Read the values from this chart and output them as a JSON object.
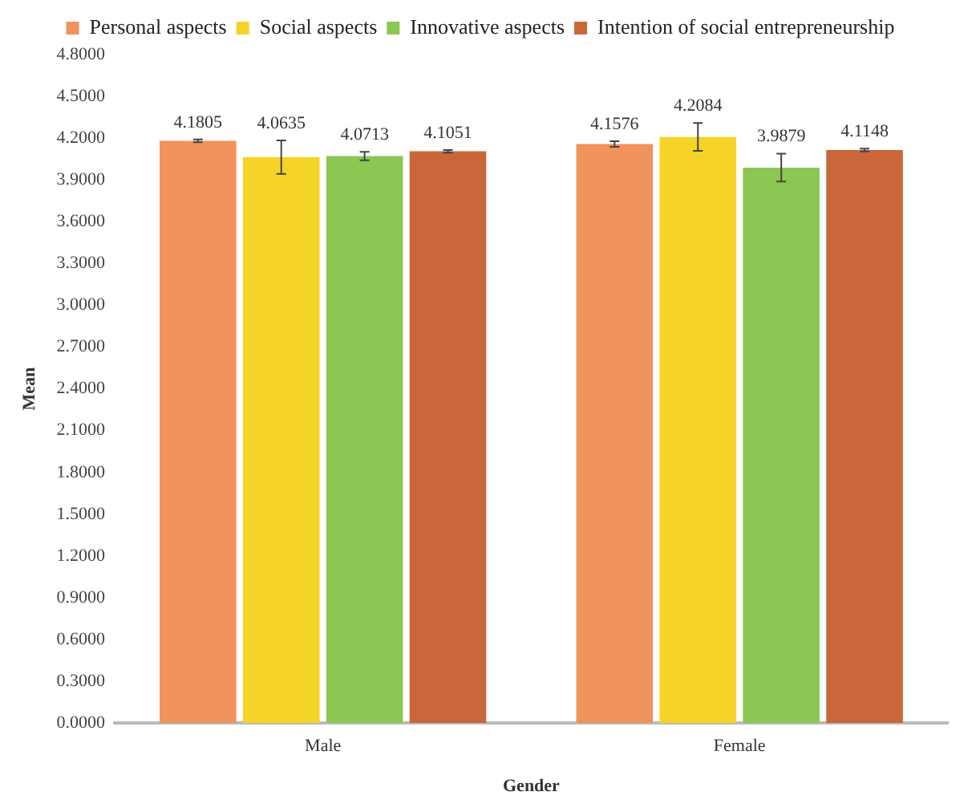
{
  "chart_data": {
    "type": "bar",
    "xlabel": "Gender",
    "ylabel": "Mean",
    "categories": [
      "Male",
      "Female"
    ],
    "series": [
      {
        "name": "Personal aspects",
        "color": "#f0935c",
        "values": [
          4.1805,
          4.1576
        ],
        "errors": [
          0.01,
          0.02
        ]
      },
      {
        "name": "Social aspects",
        "color": "#f5d327",
        "values": [
          4.0635,
          4.2084
        ],
        "errors": [
          0.12,
          0.1
        ]
      },
      {
        "name": "Innovative aspects",
        "color": "#8cc653",
        "values": [
          4.0713,
          3.9879
        ],
        "errors": [
          0.03,
          0.1
        ]
      },
      {
        "name": "Intention of social entrepreneurship",
        "color": "#c9673a",
        "values": [
          4.1051,
          4.1148
        ],
        "errors": [
          0.01,
          0.01
        ]
      }
    ],
    "ylim": [
      0,
      4.8
    ],
    "yticks": [
      {
        "value": 0,
        "label": "0.0000"
      },
      {
        "value": 0.3,
        "label": "0.3000"
      },
      {
        "value": 0.6,
        "label": "0.6000"
      },
      {
        "value": 0.9,
        "label": "0.9000"
      },
      {
        "value": 1.2,
        "label": "1.2000"
      },
      {
        "value": 1.5,
        "label": "1.5000"
      },
      {
        "value": 1.8,
        "label": "1.8000"
      },
      {
        "value": 2.1,
        "label": "2.1000"
      },
      {
        "value": 2.4,
        "label": "2.4000"
      },
      {
        "value": 2.7,
        "label": "2.7000"
      },
      {
        "value": 3,
        "label": "3.0000"
      },
      {
        "value": 3.3,
        "label": "3.3000"
      },
      {
        "value": 3.6,
        "label": "3.6000"
      },
      {
        "value": 3.9,
        "label": "3.9000"
      },
      {
        "value": 4.2,
        "label": "4.2000"
      },
      {
        "value": 4.5,
        "label": "4.5000"
      },
      {
        "value": 4.8,
        "label": "4.8000"
      }
    ],
    "grid": false,
    "legend": "top",
    "data_labels": true
  }
}
